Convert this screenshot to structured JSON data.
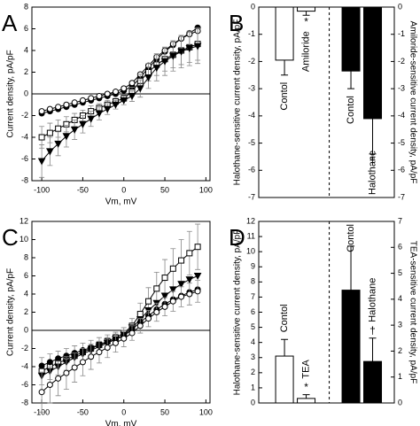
{
  "chart_data": [
    {
      "type": "line",
      "panel_label": "A",
      "xlabel": "Vm, mV",
      "ylabel": "Current density, pA/pF",
      "xlim": [
        -112,
        105
      ],
      "xticks": [
        -100,
        -50,
        0,
        50,
        100
      ],
      "ylim": [
        -8,
        8
      ],
      "yticks": [
        -8,
        -6,
        -4,
        -2,
        0,
        2,
        4,
        6,
        8
      ],
      "x": [
        -100,
        -90,
        -80,
        -70,
        -60,
        -50,
        -40,
        -30,
        -20,
        -10,
        0,
        10,
        20,
        30,
        40,
        50,
        60,
        70,
        80,
        90
      ],
      "series": [
        {
          "marker": "filled-circle",
          "color": "#000000",
          "values": [
            -1.8,
            -1.6,
            -1.4,
            -1.2,
            -1.0,
            -0.8,
            -0.6,
            -0.4,
            -0.2,
            0,
            0.3,
            0.7,
            1.5,
            2.4,
            3.2,
            3.9,
            4.5,
            5.1,
            5.6,
            6.1
          ]
        },
        {
          "marker": "open-circle",
          "color": "#000000",
          "values": [
            -1.6,
            -1.4,
            -1.2,
            -1.0,
            -0.8,
            -0.6,
            -0.4,
            -0.2,
            0,
            0.2,
            0.5,
            1.0,
            1.8,
            2.6,
            3.4,
            4.0,
            4.6,
            5.1,
            5.5,
            5.8
          ]
        },
        {
          "marker": "open-square",
          "color": "#000000",
          "values": [
            -4.0,
            -3.6,
            -3.2,
            -2.8,
            -2.4,
            -2.0,
            -1.6,
            -1.3,
            -1.0,
            -0.7,
            -0.4,
            0.2,
            1.2,
            2.0,
            2.7,
            3.2,
            3.6,
            4.0,
            4.3,
            4.6
          ],
          "errors": [
            1.0,
            0.9,
            0.8,
            0.7,
            0.6,
            0.5,
            0.5,
            0.4,
            0.4,
            0.3,
            0.3,
            0.4,
            0.6,
            0.8,
            1.0,
            1.1,
            1.2,
            1.3,
            1.4,
            1.5
          ]
        },
        {
          "marker": "filled-triangle-down",
          "color": "#000000",
          "values": [
            -6.2,
            -5.3,
            -4.6,
            -3.9,
            -3.3,
            -2.8,
            -2.3,
            -1.8,
            -1.4,
            -1.0,
            -0.6,
            -0.2,
            0.5,
            1.5,
            2.4,
            3.0,
            3.5,
            3.9,
            4.2,
            4.4
          ],
          "errors": [
            1.5,
            1.3,
            1.1,
            1.0,
            0.9,
            0.8,
            0.7,
            0.6,
            0.5,
            0.4,
            0.4,
            0.5,
            0.8,
            1.0,
            1.2,
            1.3,
            1.4,
            1.5,
            1.6,
            1.6
          ]
        }
      ]
    },
    {
      "type": "bar",
      "panel_label": "B",
      "ylabel": "Halothane-sensitive current density, pA/pF",
      "y2label": "Amiloride-sensitive current density, pA/pF",
      "ylim": [
        -7,
        0
      ],
      "yticks": [
        -7,
        -6,
        -5,
        -4,
        -3,
        -2,
        -1,
        0
      ],
      "y2lim": [
        -7,
        0
      ],
      "y2ticks": [
        -7,
        -6,
        -5,
        -4,
        -3,
        -2,
        -1,
        0
      ],
      "categories": [
        "Contol",
        "Amiloride",
        "Contol",
        "Halothane"
      ],
      "values": [
        -1.95,
        -0.15,
        -2.35,
        -4.1
      ],
      "errors": [
        0.55,
        0.15,
        0.65,
        1.3
      ],
      "colors": [
        "#ffffff",
        "#ffffff",
        "#000000",
        "#000000"
      ],
      "axes": [
        "y",
        "y",
        "y2",
        "y2"
      ],
      "annotations": [
        null,
        "*",
        null,
        "†"
      ]
    },
    {
      "type": "line",
      "panel_label": "C",
      "xlabel": "Vm, mV",
      "ylabel": "Current density, pA/pF",
      "xlim": [
        -112,
        105
      ],
      "xticks": [
        -100,
        -50,
        0,
        50,
        100
      ],
      "ylim": [
        -8,
        12
      ],
      "yticks": [
        -8,
        -6,
        -4,
        -2,
        0,
        2,
        4,
        6,
        8,
        10,
        12
      ],
      "x": [
        -100,
        -90,
        -80,
        -70,
        -60,
        -50,
        -40,
        -30,
        -20,
        -10,
        0,
        10,
        20,
        30,
        40,
        50,
        60,
        70,
        80,
        90
      ],
      "series": [
        {
          "marker": "open-square",
          "color": "#000000",
          "values": [
            -4.5,
            -4.0,
            -3.6,
            -3.2,
            -2.8,
            -2.4,
            -2.0,
            -1.6,
            -1.2,
            -0.8,
            -0.3,
            0.5,
            1.8,
            3.2,
            4.6,
            5.8,
            6.8,
            7.7,
            8.5,
            9.2
          ],
          "errors": [
            1.5,
            1.4,
            1.3,
            1.2,
            1.1,
            1.0,
            0.9,
            0.8,
            0.7,
            0.6,
            0.6,
            0.8,
            1.2,
            1.5,
            1.8,
            2.0,
            2.2,
            2.3,
            2.4,
            2.5
          ]
        },
        {
          "marker": "filled-triangle-down",
          "color": "#000000",
          "values": [
            -5.0,
            -4.5,
            -4.0,
            -3.5,
            -3.0,
            -2.6,
            -2.2,
            -1.8,
            -1.4,
            -1.0,
            -0.5,
            0.3,
            1.2,
            2.2,
            3.0,
            3.8,
            4.5,
            5.1,
            5.6,
            6.0
          ]
        },
        {
          "marker": "filled-circle",
          "color": "#000000",
          "values": [
            -3.9,
            -3.5,
            -3.1,
            -2.8,
            -2.5,
            -2.2,
            -1.9,
            -1.6,
            -1.3,
            -1.0,
            -0.6,
            0.1,
            0.9,
            1.6,
            2.3,
            2.9,
            3.4,
            3.8,
            4.2,
            4.5
          ]
        },
        {
          "marker": "open-circle",
          "color": "#000000",
          "values": [
            -6.8,
            -6.0,
            -5.3,
            -4.7,
            -4.1,
            -3.5,
            -2.9,
            -2.4,
            -1.9,
            -1.4,
            -0.9,
            -0.3,
            0.5,
            1.3,
            2.0,
            2.6,
            3.2,
            3.7,
            4.0,
            4.3
          ],
          "errors": [
            2.2,
            2.0,
            1.9,
            1.8,
            1.6,
            1.5,
            1.4,
            1.2,
            1.1,
            1.0,
            0.9,
            0.8,
            0.8,
            0.9,
            1.0,
            1.0,
            1.1,
            1.1,
            1.2,
            1.2
          ]
        }
      ]
    },
    {
      "type": "bar",
      "panel_label": "D",
      "ylabel": "Halothane-sensitive current density, pA/pF",
      "y2label": "TEA-sensitive current density, pA/pF",
      "ylim": [
        0,
        12
      ],
      "yticks": [
        0,
        1,
        2,
        3,
        4,
        5,
        6,
        7,
        8,
        9,
        10,
        11,
        12
      ],
      "y2lim": [
        0,
        7
      ],
      "y2ticks": [
        0,
        1,
        2,
        3,
        4,
        5,
        6,
        7
      ],
      "categories": [
        "Contol",
        "TEA",
        "Contol",
        "Halothane"
      ],
      "values": [
        3.1,
        0.3,
        4.35,
        1.6
      ],
      "errors": [
        1.1,
        0.25,
        1.7,
        0.9
      ],
      "colors": [
        "#ffffff",
        "#ffffff",
        "#000000",
        "#000000"
      ],
      "axes": [
        "y",
        "y",
        "y2",
        "y2"
      ],
      "annotations": [
        null,
        "*",
        null,
        "†"
      ]
    }
  ]
}
